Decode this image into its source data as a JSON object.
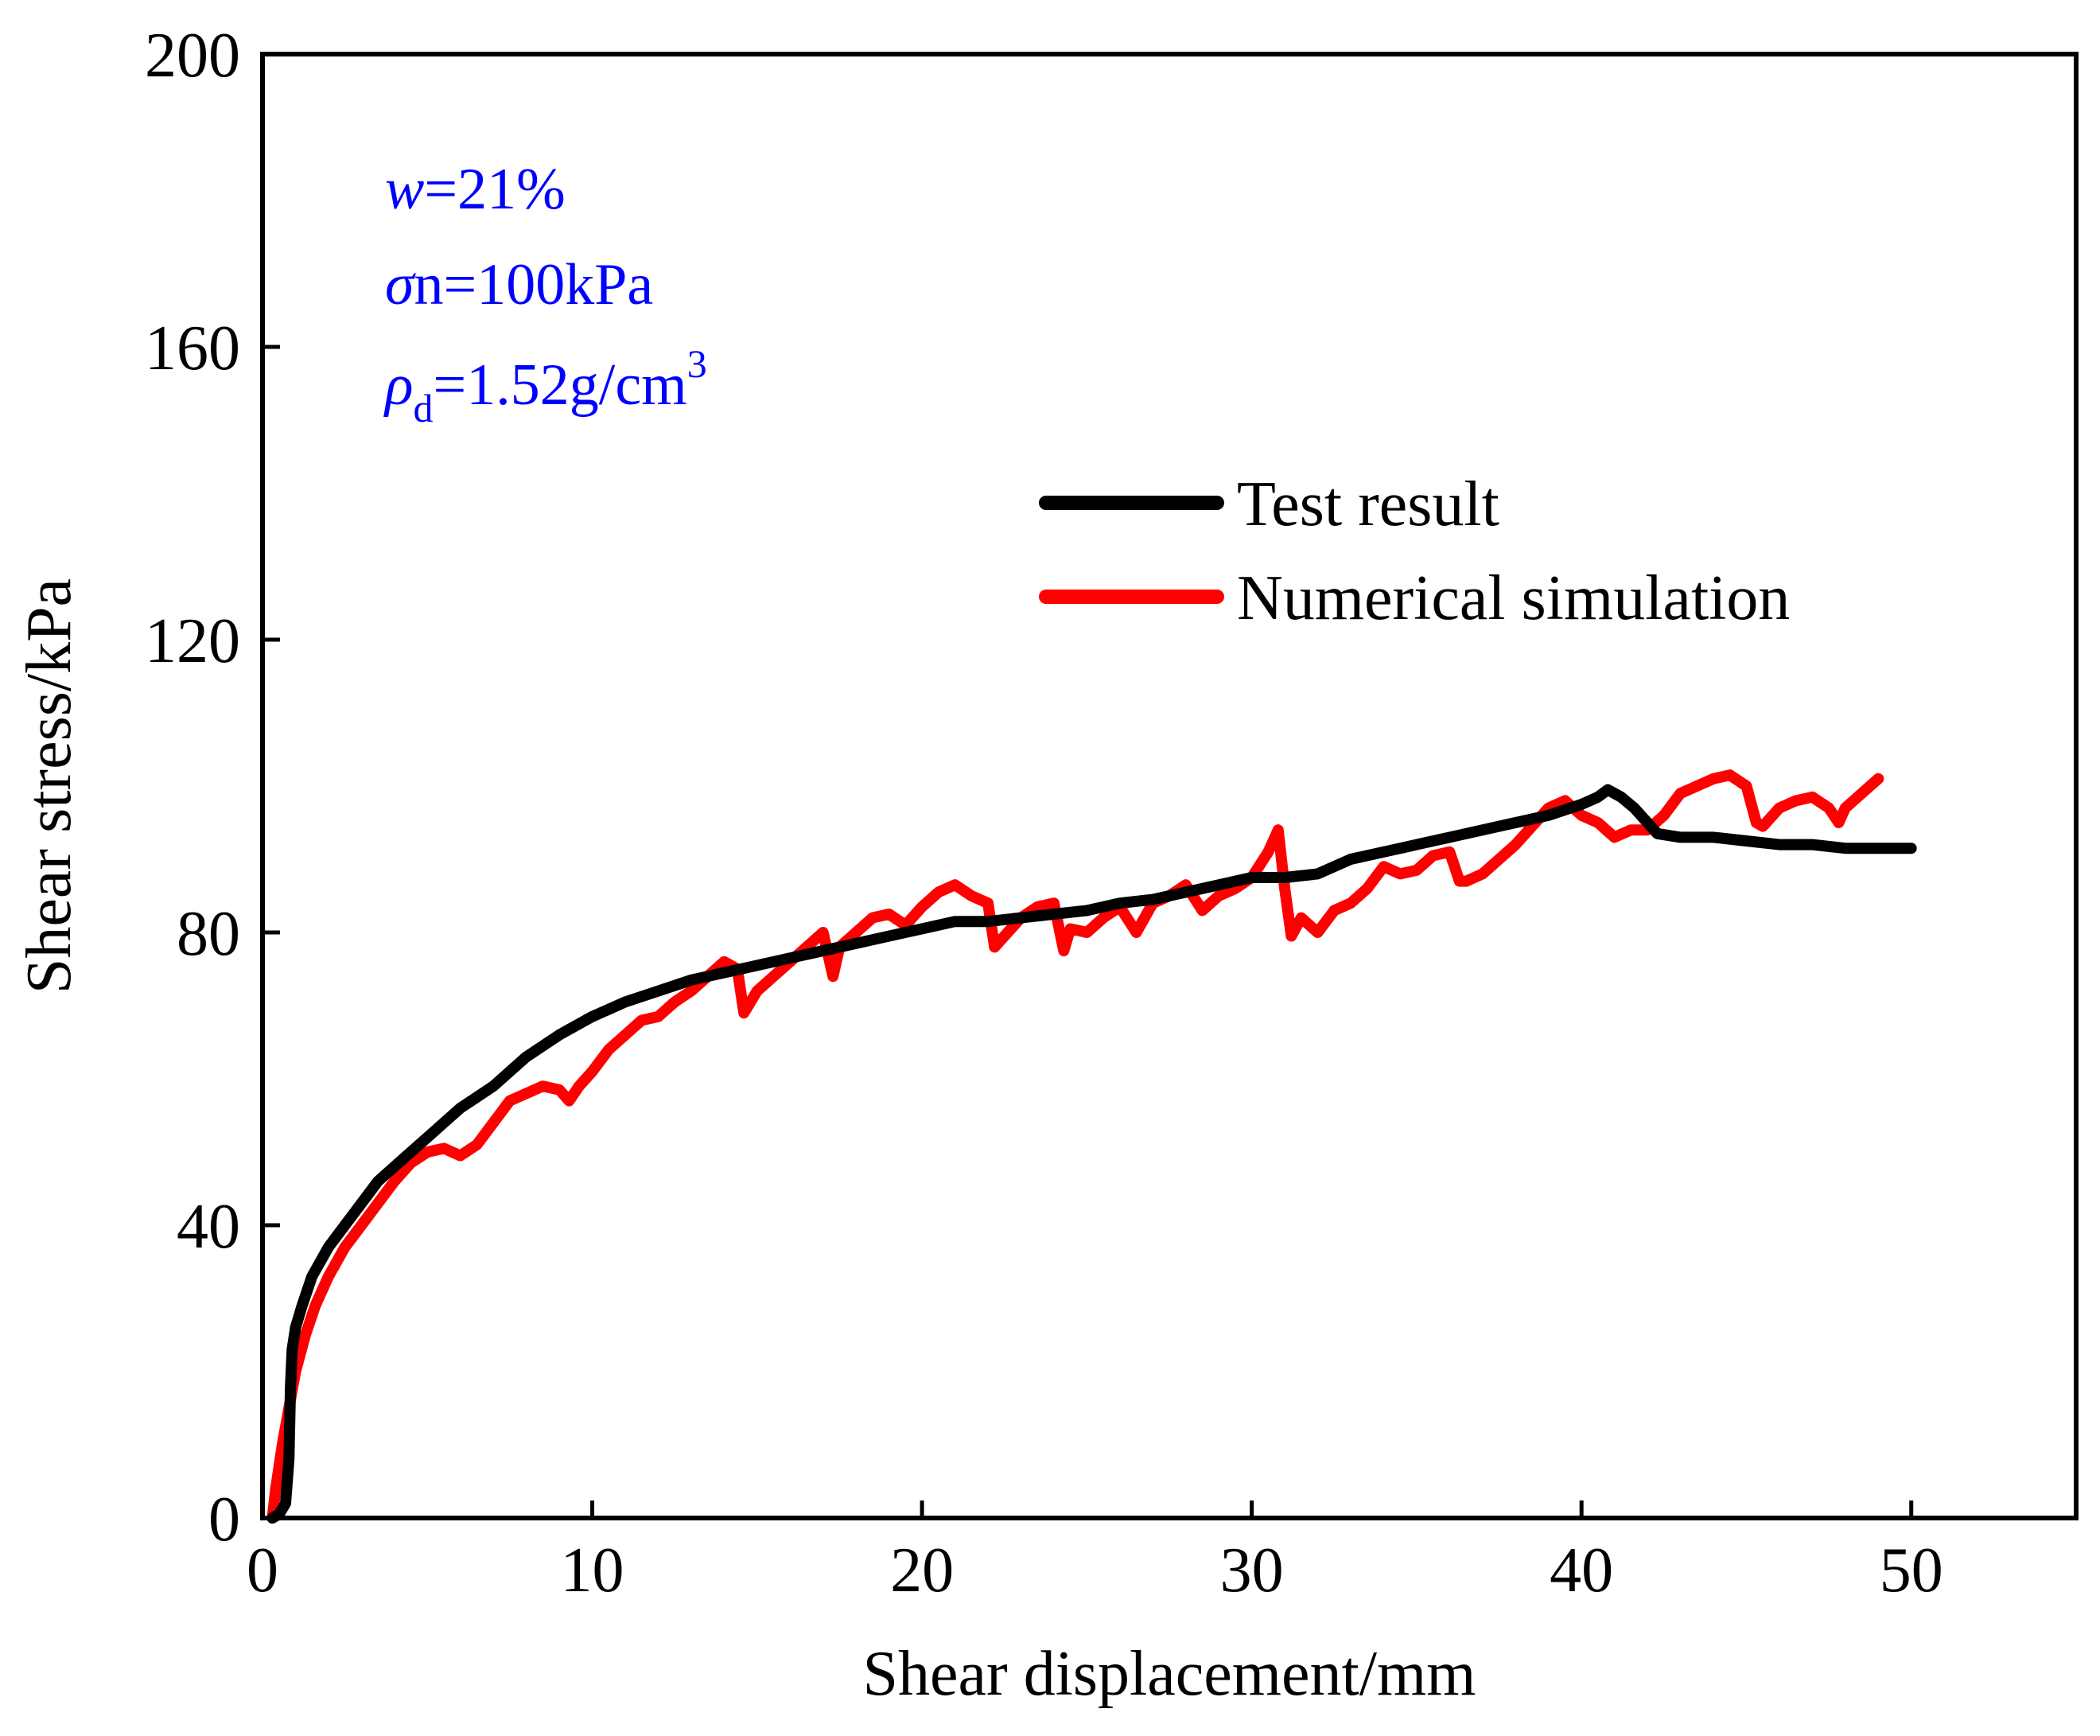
{
  "chart_data": {
    "type": "line",
    "title": "",
    "xlabel": "Shear displacement/mm",
    "ylabel": "Shear stress/kPa",
    "xlim": [
      0,
      55
    ],
    "ylim": [
      0,
      200
    ],
    "xticks": [
      0,
      10,
      20,
      30,
      40,
      50
    ],
    "yticks": [
      0,
      40,
      80,
      120,
      160,
      200
    ],
    "grid": false,
    "legend_position": "center-right",
    "annotation": {
      "w_symbol": "w",
      "w_value": "=21%",
      "sigma_symbol": "σ",
      "sigma_value": "n=100kPa",
      "rho_symbol": "ρ",
      "rho_subscript": "d",
      "rho_value": "=1.52g/cm",
      "rho_superscript": "3",
      "color": "#0000ff"
    },
    "series": [
      {
        "name": "Test result",
        "color": "#000000",
        "x": [
          0.3,
          0.5,
          0.7,
          0.8,
          0.85,
          0.9,
          1.0,
          1.2,
          1.5,
          2.0,
          2.5,
          3.0,
          3.5,
          4.0,
          4.5,
          5.0,
          5.5,
          6.0,
          7.0,
          8.0,
          9.0,
          10.0,
          11.0,
          12.0,
          13.0,
          14.0,
          15.0,
          16.0,
          17.0,
          18.0,
          19.0,
          20.0,
          21.0,
          22.0,
          23.0,
          24.0,
          25.0,
          26.0,
          27.0,
          28.0,
          29.0,
          30.0,
          31.0,
          32.0,
          33.0,
          34.0,
          35.0,
          36.0,
          37.0,
          38.0,
          39.0,
          40.0,
          40.5,
          40.8,
          41.2,
          41.6,
          42.0,
          42.3,
          43.0,
          44.0,
          45.0,
          46.0,
          47.0,
          48.0,
          49.0,
          50.0
        ],
        "values": [
          0,
          0.5,
          2,
          8,
          18,
          23,
          26,
          29,
          33,
          37,
          40,
          43,
          46,
          48,
          50,
          52,
          54,
          56,
          59,
          63,
          66,
          68.5,
          70.5,
          72,
          73.5,
          74.5,
          75.5,
          76.5,
          77.5,
          78.5,
          79.5,
          80.5,
          81.5,
          81.5,
          82,
          82.5,
          83,
          84,
          84.5,
          85.5,
          86.5,
          87.5,
          87.5,
          88,
          90,
          91,
          92,
          93,
          94,
          95,
          96,
          97.5,
          98.5,
          99.5,
          98.5,
          97,
          95,
          93.5,
          93,
          93,
          92.5,
          92,
          92,
          91.5,
          91.5,
          91.5
        ]
      },
      {
        "name": "Numerical simulation",
        "color": "#ff0000",
        "x": [
          0.3,
          0.4,
          0.6,
          0.8,
          1.0,
          1.3,
          1.6,
          2.0,
          2.5,
          3.0,
          3.5,
          4.0,
          4.5,
          5.0,
          5.5,
          6.0,
          6.5,
          7.0,
          7.5,
          8.0,
          8.5,
          9.0,
          9.3,
          9.6,
          10.0,
          10.5,
          11.0,
          11.5,
          12.0,
          12.5,
          13.0,
          13.5,
          14.0,
          14.4,
          14.6,
          15.0,
          15.5,
          16.0,
          16.5,
          17.0,
          17.3,
          17.5,
          18.0,
          18.5,
          19.0,
          19.5,
          20.0,
          20.5,
          21.0,
          21.5,
          22.0,
          22.2,
          22.5,
          23.0,
          23.5,
          24.0,
          24.3,
          24.5,
          25.0,
          25.5,
          26.0,
          26.5,
          27.0,
          27.5,
          28.0,
          28.5,
          29.0,
          29.5,
          30.0,
          30.5,
          30.8,
          31.0,
          31.2,
          31.5,
          32.0,
          32.5,
          33.0,
          33.5,
          34.0,
          34.5,
          35.0,
          35.5,
          36.0,
          36.3,
          36.5,
          37.0,
          37.5,
          38.0,
          38.5,
          39.0,
          39.5,
          40.0,
          40.5,
          41.0,
          41.5,
          42.0,
          42.5,
          43.0,
          43.5,
          44.0,
          44.5,
          45.0,
          45.3,
          45.5,
          46.0,
          46.5,
          47.0,
          47.5,
          47.8,
          48.0,
          48.5,
          49.0
        ],
        "values": [
          0,
          4,
          10,
          15,
          20,
          25,
          29,
          33,
          37,
          40,
          43,
          46,
          48.5,
          50,
          50.5,
          49.5,
          51,
          54,
          57,
          58,
          59,
          58.5,
          57,
          59,
          61,
          64,
          66,
          68,
          68.5,
          70.5,
          72,
          74,
          76,
          75,
          69,
          72,
          74,
          76,
          78,
          80,
          74,
          78,
          80,
          82,
          82.5,
          81,
          83.5,
          85.5,
          86.5,
          85,
          84,
          78,
          79.5,
          82,
          83.5,
          84,
          77.5,
          80.5,
          80,
          82,
          83.5,
          80,
          84,
          85,
          86.5,
          83,
          85,
          86,
          87.5,
          91,
          94,
          86,
          79.5,
          82,
          80,
          83,
          84,
          86,
          89,
          88,
          88.5,
          90.5,
          91,
          87,
          87,
          88,
          90,
          92,
          94.5,
          97,
          98,
          96,
          95,
          93,
          94,
          94,
          96,
          99,
          100,
          101,
          101.5,
          100,
          95,
          94.5,
          97,
          98,
          98.5,
          97,
          95,
          97,
          99,
          101
        ]
      }
    ]
  }
}
